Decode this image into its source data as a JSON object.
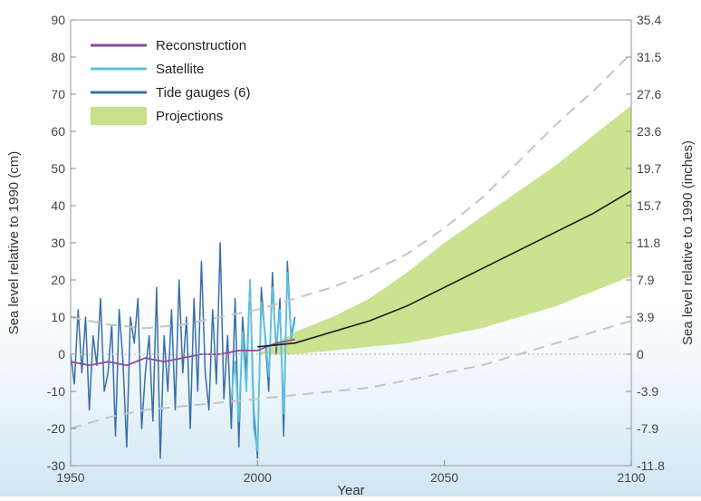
{
  "chart_data": {
    "type": "line",
    "title": "",
    "xlabel": "Year",
    "ylabel": "Sea level relative to 1990 (cm)",
    "y2label": "Sea level relative to 1990 (inches)",
    "xlim": [
      1950,
      2100
    ],
    "ylim": [
      -30,
      90
    ],
    "xticks": [
      1950,
      2000,
      2050,
      2100
    ],
    "yticks": [
      -30,
      -20,
      -10,
      0,
      10,
      20,
      30,
      40,
      50,
      60,
      70,
      80,
      90
    ],
    "y2ticks": [
      "-11.8",
      "-7.9",
      "-3.9",
      "0",
      "3.9",
      "7.9",
      "11.8",
      "15.7",
      "19.7",
      "23.6",
      "27.6",
      "31.5",
      "35.4"
    ],
    "grid": false,
    "legend_position": "top-left",
    "colors": {
      "reconstruction": "#8a4a9e",
      "satellite": "#5bc3e0",
      "tide_gauges": "#3a6fa8",
      "projection_fill": "#c8e08a",
      "projection_central": "#1a1a1a",
      "envelope": "#c4c4c4",
      "zero_line": "#bbbbbb"
    },
    "legend": [
      {
        "label": "Reconstruction",
        "kind": "line",
        "color": "#8a4a9e"
      },
      {
        "label": "Satellite",
        "kind": "line",
        "color": "#5bc3e0"
      },
      {
        "label": "Tide gauges (6)",
        "kind": "line",
        "color": "#3a6fa8"
      },
      {
        "label": "Projections",
        "kind": "fill",
        "color": "#c8e08a"
      }
    ],
    "series": [
      {
        "name": "Tide gauges (6)",
        "style": "line",
        "x": [
          1950,
          1951,
          1952,
          1953,
          1954,
          1955,
          1956,
          1957,
          1958,
          1959,
          1960,
          1961,
          1962,
          1963,
          1964,
          1965,
          1966,
          1967,
          1968,
          1969,
          1970,
          1971,
          1972,
          1973,
          1974,
          1975,
          1976,
          1977,
          1978,
          1979,
          1980,
          1981,
          1982,
          1983,
          1984,
          1985,
          1986,
          1987,
          1988,
          1989,
          1990,
          1991,
          1992,
          1993,
          1994,
          1995,
          1996,
          1997,
          1998,
          1999,
          2000,
          2001,
          2002,
          2003,
          2004,
          2005,
          2006,
          2007,
          2008,
          2009,
          2010
        ],
        "y": [
          0,
          -8,
          12,
          -5,
          10,
          -15,
          5,
          -3,
          15,
          -10,
          -5,
          8,
          -22,
          12,
          -2,
          -25,
          10,
          3,
          15,
          -20,
          -5,
          5,
          -18,
          18,
          -28,
          5,
          -10,
          12,
          -15,
          20,
          -5,
          10,
          -20,
          15,
          -10,
          25,
          -5,
          -15,
          12,
          -8,
          30,
          -12,
          5,
          -20,
          15,
          -25,
          10,
          -5,
          20,
          -15,
          -28,
          18,
          5,
          -10,
          22,
          0,
          15,
          -22,
          25,
          5,
          10
        ]
      },
      {
        "name": "Satellite",
        "style": "line",
        "x": [
          1993,
          1994,
          1995,
          1996,
          1997,
          1998,
          1999,
          2000,
          2001,
          2002,
          2003,
          2004,
          2005,
          2006,
          2007,
          2008,
          2009,
          2010
        ],
        "y": [
          -12,
          -2,
          -18,
          6,
          -10,
          20,
          -20,
          -26,
          14,
          6,
          -6,
          18,
          2,
          12,
          -16,
          22,
          4,
          9
        ]
      },
      {
        "name": "Reconstruction",
        "style": "line",
        "x": [
          1950,
          1955,
          1960,
          1965,
          1970,
          1975,
          1980,
          1985,
          1990,
          1995,
          2000,
          2005,
          2010
        ],
        "y": [
          -2,
          -3,
          -2,
          -3,
          -1,
          -2,
          -1,
          0,
          0,
          1,
          1,
          3,
          4
        ]
      },
      {
        "name": "Projections",
        "style": "band",
        "x": [
          2000,
          2010,
          2020,
          2030,
          2040,
          2050,
          2060,
          2070,
          2080,
          2090,
          2100
        ],
        "lower": [
          0,
          0,
          1,
          2,
          3,
          5,
          7,
          10,
          13,
          17,
          21
        ],
        "upper": [
          0,
          6,
          10,
          15,
          22,
          30,
          37,
          44,
          51,
          59,
          67
        ]
      },
      {
        "name": "",
        "style": "central",
        "x": [
          2000,
          2010,
          2020,
          2030,
          2040,
          2050,
          2060,
          2070,
          2080,
          2090,
          2100
        ],
        "y": [
          2,
          3,
          6,
          9,
          13,
          18,
          23,
          28,
          33,
          38,
          44
        ]
      },
      {
        "name": "",
        "style": "dashed",
        "x": [
          1950,
          1960,
          1970,
          1980,
          1990,
          2000,
          2010,
          2020,
          2030,
          2040,
          2050,
          2060,
          2070,
          2080,
          2090,
          2100
        ],
        "y": [
          -20,
          -17,
          -15,
          -14,
          -13,
          -12,
          -11,
          -10,
          -9,
          -7,
          -5,
          -3,
          0,
          3,
          6,
          9
        ]
      },
      {
        "name": "",
        "style": "dashed",
        "x": [
          1950,
          1960,
          1970,
          1980,
          1990,
          2000,
          2010,
          2020,
          2030,
          2040,
          2050,
          2060,
          2070,
          2080,
          2090,
          2100
        ],
        "y": [
          10,
          8,
          7,
          8,
          10,
          12,
          15,
          18,
          22,
          27,
          34,
          42,
          52,
          62,
          71,
          81
        ]
      }
    ]
  }
}
